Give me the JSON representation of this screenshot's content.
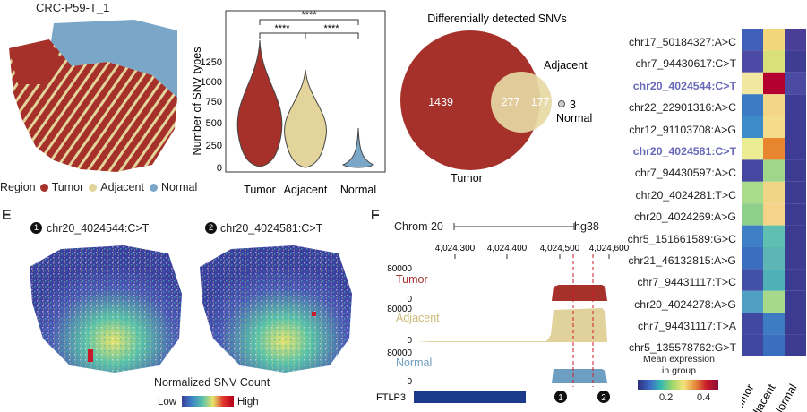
{
  "panel_sample": {
    "title": "CRC-P59-T_1",
    "legend_title": "Region",
    "legend": [
      {
        "label": "Tumor",
        "color": "#a6302a"
      },
      {
        "label": "Adjacent",
        "color": "#e2d49a"
      },
      {
        "label": "Normal",
        "color": "#7aa6c8"
      }
    ]
  },
  "violin": {
    "ylabel": "Number of SNV types",
    "yticks": [
      "0",
      "250",
      "500",
      "750",
      "1000",
      "1250"
    ],
    "categories": [
      "Tumor",
      "Adjacent",
      "Normal"
    ],
    "sig": [
      "****",
      "****",
      "****"
    ]
  },
  "venn": {
    "title": "Differentially detected SNVs",
    "labels": {
      "tumor": "Tumor",
      "adjacent": "Adjacent",
      "normal": "Normal"
    },
    "counts": {
      "tumor_only": "1439",
      "overlap": "277",
      "adjacent_only": "177",
      "normal": "3"
    }
  },
  "heatmap": {
    "rows": [
      {
        "label": "chr17_50184327:A>C",
        "highlight": false
      },
      {
        "label": "chr7_94430617:C>T",
        "highlight": false
      },
      {
        "label": "chr20_4024544:C>T",
        "highlight": true
      },
      {
        "label": "chr22_22901316:A>C",
        "highlight": false
      },
      {
        "label": "chr12_91103708:A>G",
        "highlight": false
      },
      {
        "label": "chr20_4024581:C>T",
        "highlight": true
      },
      {
        "label": "chr7_94430597:A>C",
        "highlight": false
      },
      {
        "label": "chr20_4024281:T>C",
        "highlight": false
      },
      {
        "label": "chr20_4024269:A>G",
        "highlight": false
      },
      {
        "label": "chr5_151661589:G>C",
        "highlight": false
      },
      {
        "label": "chr21_46132815:A>G",
        "highlight": false
      },
      {
        "label": "chr7_94431117:T>C",
        "highlight": false
      },
      {
        "label": "chr20_4024278:A>G",
        "highlight": false
      },
      {
        "label": "chr7_94431117:T>A",
        "highlight": false
      },
      {
        "label": "chr5_135578762:G>T",
        "highlight": false
      }
    ],
    "columns": [
      "Tumor",
      "Adjacent",
      "Normal"
    ],
    "colorbar_title_1": "Mean expression",
    "colorbar_title_2": "in group",
    "colorbar_ticks": [
      "0.2",
      "0.4"
    ]
  },
  "panel_e": {
    "letter": "E",
    "maps": [
      {
        "num": "1",
        "title": "chr20_4024544:C>T"
      },
      {
        "num": "2",
        "title": "chr20_4024581:C>T"
      }
    ],
    "colorbar_title": "Normalized SNV Count",
    "low": "Low",
    "high": "High"
  },
  "panel_f": {
    "letter": "F",
    "chrom": "Chrom 20",
    "genome": "hg38",
    "positions": [
      "4,024,300",
      "4,024,400",
      "4,024,500",
      "4,024,600"
    ],
    "tracks": [
      {
        "label": "Tumor",
        "ymax": "80000",
        "ymin": "0",
        "color": "#a6302a"
      },
      {
        "label": "Adjacent",
        "ymax": "80000",
        "ymin": "0",
        "color": "#e0d29a"
      },
      {
        "label": "Normal",
        "ymax": "80000",
        "ymin": "0",
        "color": "#6e9ec2"
      }
    ],
    "gene": "FTLP3",
    "markers": [
      "1",
      "2"
    ]
  }
}
